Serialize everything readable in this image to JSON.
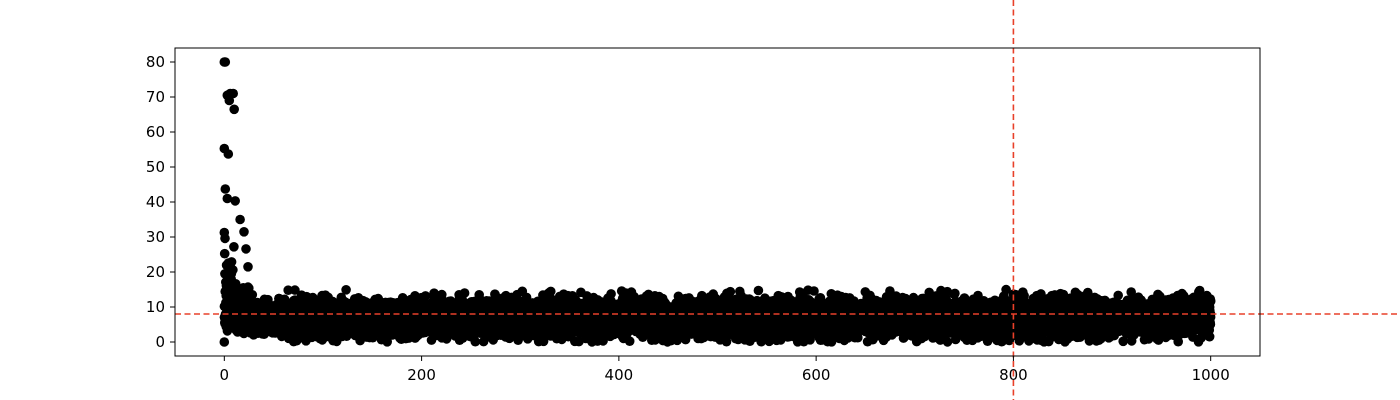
{
  "chart_data": {
    "type": "scatter",
    "title": "",
    "xlabel": "",
    "ylabel": "",
    "xlim": [
      -50,
      1050
    ],
    "ylim": [
      -4,
      84
    ],
    "xticks": [
      0,
      200,
      400,
      600,
      800,
      1000
    ],
    "yticks": [
      0,
      10,
      20,
      30,
      40,
      50,
      60,
      70,
      80
    ],
    "grid": false,
    "legend": "none",
    "marker_color": "#000000",
    "reference_lines": {
      "color": "#e8402a",
      "vertical_x": 800,
      "horizontal_y": 8
    },
    "point_count": 10000,
    "x_domain": [
      0,
      1000
    ],
    "plateau": {
      "x_from": 50,
      "center": 7,
      "min": 0,
      "max": 15
    },
    "notable_points": [
      {
        "x": 0,
        "y": 80
      },
      {
        "x": 1,
        "y": 80
      },
      {
        "x": 3,
        "y": 70.5
      },
      {
        "x": 5,
        "y": 69
      },
      {
        "x": 6,
        "y": 71
      },
      {
        "x": 9,
        "y": 71
      },
      {
        "x": 10,
        "y": 66.5
      },
      {
        "x": 0,
        "y": 55.3
      },
      {
        "x": 4,
        "y": 53.7
      },
      {
        "x": 1,
        "y": 43.7
      },
      {
        "x": 3,
        "y": 41
      },
      {
        "x": 11,
        "y": 40.3
      },
      {
        "x": 16,
        "y": 35
      },
      {
        "x": 20,
        "y": 31.5
      },
      {
        "x": 22,
        "y": 26.6
      },
      {
        "x": 24,
        "y": 21.5
      },
      {
        "x": 0,
        "y": 0
      },
      {
        "x": 384,
        "y": 0.3
      },
      {
        "x": 877,
        "y": 0.3
      }
    ]
  }
}
